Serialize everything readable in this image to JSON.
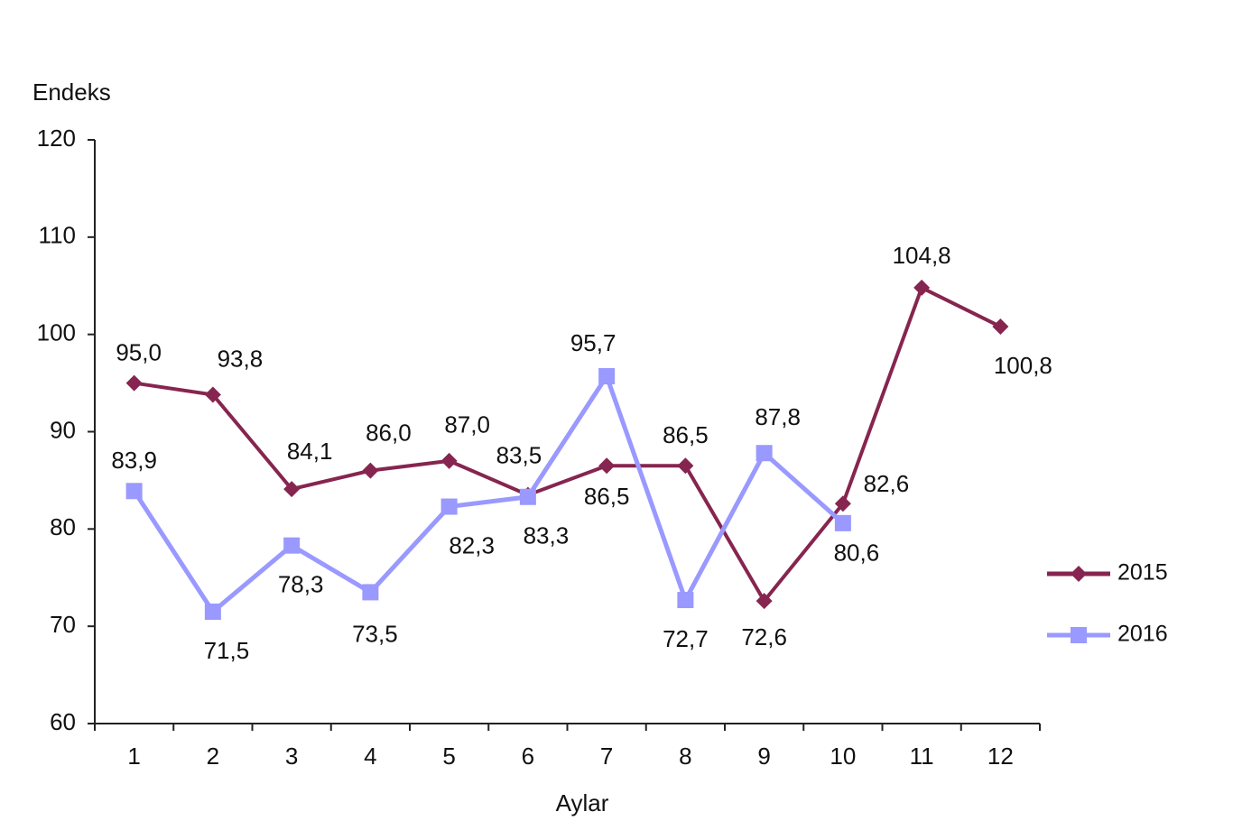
{
  "chart_data": {
    "type": "line",
    "y_label": "Endeks",
    "x_label": "Aylar",
    "categories": [
      "1",
      "2",
      "3",
      "4",
      "5",
      "6",
      "7",
      "8",
      "9",
      "10",
      "11",
      "12"
    ],
    "series": [
      {
        "name": "2015",
        "color": "#86254f",
        "marker": "diamond",
        "values": [
          95.0,
          93.8,
          84.1,
          86.0,
          87.0,
          83.5,
          86.5,
          86.5,
          72.6,
          82.6,
          104.8,
          100.8
        ],
        "value_labels": [
          "95,0",
          "93,8",
          "84,1",
          "86,0",
          "87,0",
          "83,5",
          "86,5",
          "86,5",
          "72,6",
          "82,6",
          "104,8",
          "100,8"
        ]
      },
      {
        "name": "2016",
        "color": "#9999ff",
        "marker": "square",
        "values": [
          83.9,
          71.5,
          78.3,
          73.5,
          82.3,
          83.3,
          95.7,
          72.7,
          87.8,
          80.6,
          null,
          null
        ],
        "value_labels": [
          "83,9",
          "71,5",
          "78,3",
          "73,5",
          "82,3",
          "83,3",
          "95,7",
          "72,7",
          "87,8",
          "80,6",
          null,
          null
        ]
      }
    ],
    "ylim": [
      60,
      120
    ],
    "yticks": [
      60,
      70,
      80,
      90,
      100,
      110,
      120
    ],
    "legend": "right"
  }
}
